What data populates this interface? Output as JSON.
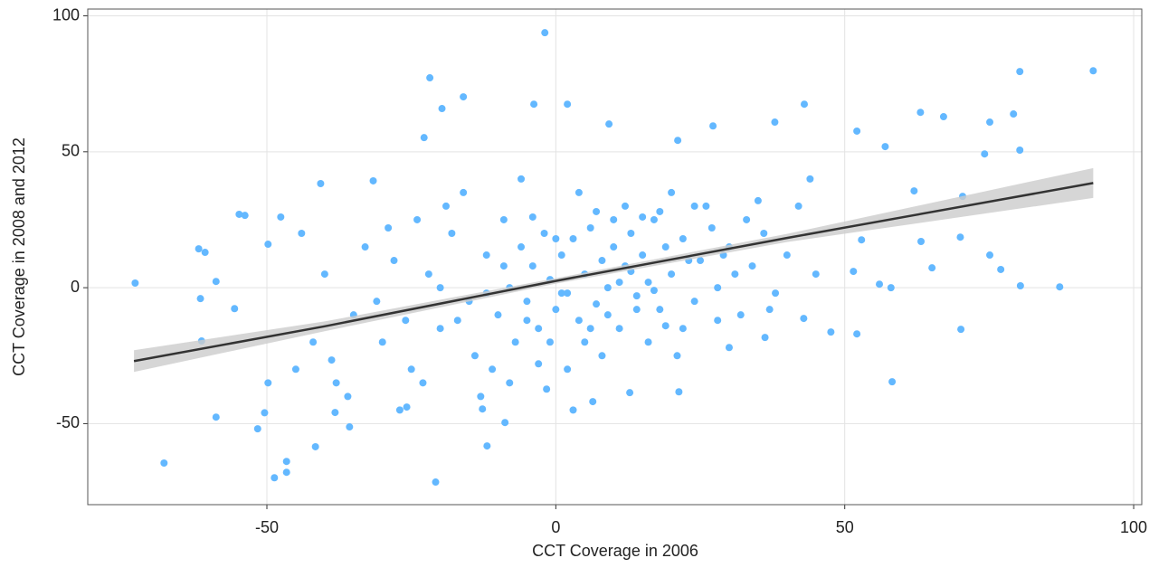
{
  "chart_data": {
    "type": "scatter",
    "x_label": "CCT Coverage in 2006",
    "y_label": "CCT Coverage in 2008 and 2012",
    "color": "#63b8ff",
    "xlim": [
      -81,
      101.4
    ],
    "ylim": [
      -79.8,
      102.5
    ],
    "xticks": [
      -50,
      0,
      50,
      100
    ],
    "yticks": [
      -50,
      0,
      50,
      100
    ],
    "grid": true,
    "x": [
      -72.8,
      -67.8,
      -61.8,
      -60.7,
      -58.8,
      -58.8,
      -61.5,
      -61.3,
      -54.8,
      -53.8,
      -55.6,
      -49.8,
      -47.6,
      -51.6,
      -50.4,
      -48.7,
      -46.6,
      -46.6,
      -49.8,
      -40.7,
      -31.6,
      -22.8,
      -21.8,
      -19.7,
      -16,
      -1.9,
      -20.8,
      -11.9,
      -8.8,
      -3.8,
      2.0,
      9.2,
      21.1,
      27.2,
      37.9,
      43,
      52.1,
      57,
      63.1,
      67.1,
      93,
      80.3,
      79.2,
      80.3,
      75.1,
      74.2,
      70.4,
      62,
      80.4,
      87.2,
      70.1,
      58.2,
      52.1,
      47.6,
      51.5,
      56,
      65.1,
      75.1,
      77,
      63.2,
      58,
      70,
      52.9,
      42.9,
      36.2,
      21.3,
      12.8,
      6.4,
      -1.6,
      -12.7,
      -25.8,
      -35.7,
      -41.6,
      -38.8,
      -38.2,
      -30,
      -28,
      -25,
      -22,
      -20,
      -18,
      -15,
      -14,
      -12,
      -10,
      -9,
      -8,
      -7,
      -6,
      -5,
      -4,
      -3,
      -2,
      -1,
      0,
      1,
      2,
      3,
      4,
      5,
      6,
      7,
      8,
      9,
      10,
      11,
      12,
      13,
      14,
      15,
      16,
      17,
      18,
      19,
      20,
      22,
      24,
      25,
      27,
      28,
      30,
      32,
      34,
      36,
      38,
      40,
      42,
      45,
      -35,
      -33,
      -38,
      -40,
      -42,
      -45,
      -44,
      -36,
      -27,
      -19,
      -16,
      -11,
      -6,
      -3,
      2,
      4,
      8,
      12,
      16,
      20,
      26,
      30,
      35,
      44,
      -24,
      -13,
      -1,
      6,
      10,
      14,
      18,
      22,
      28,
      33,
      -31,
      -20,
      -8,
      0,
      3,
      7,
      -17,
      -9,
      11,
      21,
      24,
      31,
      37,
      -26,
      -23,
      -29,
      -5,
      1,
      5,
      9,
      13,
      17,
      23,
      29,
      -12,
      -4,
      15,
      19
    ],
    "values": [
      1.7,
      -64.5,
      14.3,
      13,
      -47.6,
      2.3,
      -4,
      -19.6,
      27,
      26.6,
      -7.7,
      16,
      26,
      -51.9,
      -46,
      -69.9,
      -63.9,
      -67.9,
      -35,
      38.3,
      39.3,
      55.2,
      77.2,
      65.9,
      70.2,
      93.8,
      -71.5,
      -58.2,
      -49.6,
      67.5,
      67.5,
      60.2,
      54.2,
      59.5,
      60.9,
      67.5,
      57.6,
      51.9,
      64.5,
      62.9,
      79.8,
      79.5,
      63.9,
      50.6,
      60.9,
      49.2,
      33.6,
      35.6,
      0.7,
      0.3,
      -15.3,
      -34.6,
      -17,
      -16.3,
      6,
      1.3,
      7.3,
      12,
      6.7,
      17,
      0,
      18.6,
      17.6,
      -11.3,
      -18.3,
      -38.3,
      -38.6,
      -41.9,
      -37.3,
      -44.6,
      -43.9,
      -51.2,
      -58.5,
      -26.6,
      -45.9,
      -20,
      10,
      -30,
      5,
      -15,
      20,
      -5,
      -25,
      12,
      -10,
      25,
      0,
      -20,
      15,
      -5,
      8,
      -15,
      20,
      3,
      -8,
      12,
      -2,
      18,
      -12,
      5,
      22,
      -6,
      10,
      0,
      15,
      -15,
      8,
      20,
      -3,
      12,
      2,
      25,
      -8,
      15,
      5,
      18,
      -5,
      10,
      22,
      0,
      15,
      -10,
      8,
      20,
      -2,
      12,
      30,
      5,
      -10,
      15,
      -35,
      5,
      -20,
      -30,
      20,
      -40,
      -45,
      30,
      35,
      -30,
      40,
      -28,
      -30,
      35,
      -25,
      30,
      -20,
      35,
      30,
      -22,
      32,
      40,
      25,
      -40,
      -20,
      -15,
      25,
      -8,
      28,
      -15,
      -12,
      25,
      -5,
      0,
      -35,
      18,
      -45,
      28,
      -12,
      8,
      2,
      -25,
      30,
      5,
      -8,
      -12,
      -35,
      22,
      -12,
      -2,
      -20,
      -10,
      6,
      -1,
      10,
      12,
      -2,
      26,
      26,
      -14
    ],
    "fit": {
      "color": "#333333",
      "band_color": "#cccccc",
      "x": [
        -73,
        -40,
        0,
        40,
        93
      ],
      "values": [
        -27,
        -14.2,
        2.5,
        18.3,
        38.5
      ],
      "lower": [
        -31,
        -16,
        1.5,
        16.8,
        33
      ],
      "upper": [
        -23,
        -12.4,
        3.5,
        19.8,
        44
      ]
    }
  }
}
